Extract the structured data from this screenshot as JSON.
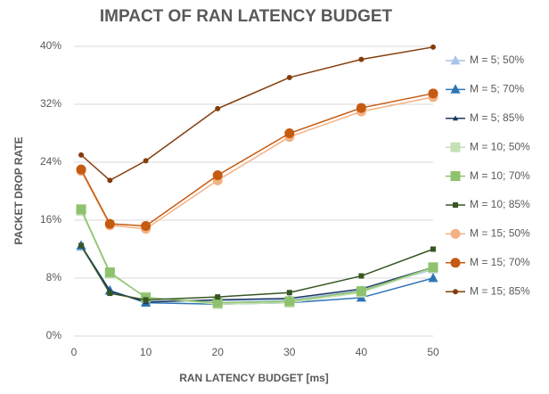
{
  "chart_data": {
    "type": "line",
    "title": "IMPACT OF RAN LATENCY BUDGET",
    "x_label": "RAN LATENCY BUDGET [ms]",
    "y_label": "PACKET DROP RATE",
    "x": [
      1,
      5,
      10,
      20,
      30,
      40,
      50
    ],
    "xlim": [
      0,
      50
    ],
    "xticks": [
      0,
      10,
      20,
      30,
      40,
      50
    ],
    "ylim": [
      0,
      40
    ],
    "yticks": [
      {
        "value": 0,
        "label": "0%"
      },
      {
        "value": 8,
        "label": "8%"
      },
      {
        "value": 16,
        "label": "16%"
      },
      {
        "value": 24,
        "label": "24%"
      },
      {
        "value": 32,
        "label": "32%"
      },
      {
        "value": 40,
        "label": "40%"
      }
    ],
    "grid": true,
    "legend": "right",
    "series": [
      {
        "name": "M = 5; 50%",
        "color": "#a9c4e8",
        "marker": "triangle",
        "values": [
          12.3,
          6.2,
          4.8,
          4.9,
          5.0,
          6.3,
          9.2
        ]
      },
      {
        "name": "M = 5; 70%",
        "color": "#2e75b6",
        "marker": "triangle",
        "values": [
          12.5,
          6.3,
          4.6,
          4.4,
          4.6,
          5.3,
          8.0
        ]
      },
      {
        "name": "M = 5; 85%",
        "color": "#1f3864",
        "marker": "triangle",
        "values": [
          12.5,
          6.2,
          4.7,
          5.0,
          5.2,
          6.5,
          9.5
        ]
      },
      {
        "name": "M = 10; 50%",
        "color": "#c5e0b4",
        "marker": "square",
        "values": [
          17.3,
          8.6,
          5.4,
          4.4,
          4.6,
          6.0,
          9.4
        ]
      },
      {
        "name": "M = 10; 70%",
        "color": "#8fc26e",
        "marker": "square",
        "values": [
          17.5,
          8.8,
          5.3,
          4.6,
          4.8,
          6.2,
          9.5
        ]
      },
      {
        "name": "M = 10; 85%",
        "color": "#375623",
        "marker": "square",
        "values": [
          12.5,
          5.9,
          5.0,
          5.4,
          6.0,
          8.3,
          12.0
        ]
      },
      {
        "name": "M = 15; 50%",
        "color": "#f4b183",
        "marker": "circle",
        "values": [
          22.8,
          15.3,
          14.8,
          21.5,
          27.5,
          31.0,
          33.0
        ]
      },
      {
        "name": "M = 15; 70%",
        "color": "#c55a11",
        "marker": "circle",
        "values": [
          23.0,
          15.5,
          15.2,
          22.2,
          28.0,
          31.5,
          33.5
        ]
      },
      {
        "name": "M = 15; 85%",
        "color": "#843c0c",
        "marker": "circle",
        "values": [
          25.0,
          21.5,
          24.2,
          31.4,
          35.7,
          38.2,
          39.9
        ]
      }
    ]
  }
}
